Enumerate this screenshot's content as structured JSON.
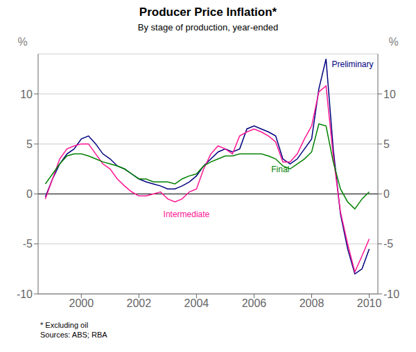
{
  "chart_data": {
    "type": "line",
    "title": "Producer Price Inflation*",
    "subtitle": "By stage of production, year-ended",
    "footnote": "*  Excluding oil",
    "sources": "Sources: ABS; RBA",
    "ylabel": "%",
    "y2label": "%",
    "ylim": [
      -10,
      14
    ],
    "yticks": [
      -10,
      -5,
      0,
      5,
      10
    ],
    "y2lim": [
      -10,
      14
    ],
    "y2ticks": [
      -10,
      -5,
      0,
      5,
      10
    ],
    "xlim": [
      1998.5,
      2010.3
    ],
    "xticks": [
      2000,
      2002,
      2004,
      2006,
      2008,
      2010
    ],
    "grid": true,
    "hlines": [
      0
    ],
    "x": [
      1998.75,
      1999.0,
      1999.25,
      1999.5,
      1999.75,
      2000.0,
      2000.25,
      2000.5,
      2000.75,
      2001.0,
      2001.25,
      2001.5,
      2001.75,
      2002.0,
      2002.25,
      2002.5,
      2002.75,
      2003.0,
      2003.25,
      2003.5,
      2003.75,
      2004.0,
      2004.25,
      2004.5,
      2004.75,
      2005.0,
      2005.25,
      2005.5,
      2005.75,
      2006.0,
      2006.25,
      2006.5,
      2006.75,
      2007.0,
      2007.25,
      2007.5,
      2007.75,
      2008.0,
      2008.25,
      2008.5,
      2008.75,
      2009.0,
      2009.25,
      2009.5,
      2009.75,
      2010.0
    ],
    "series": [
      {
        "name": "Preliminary",
        "color": "#000080",
        "values": [
          -0.3,
          1.5,
          3.0,
          4.0,
          4.5,
          5.5,
          5.8,
          5.0,
          4.0,
          3.5,
          2.8,
          2.5,
          2.0,
          1.5,
          1.2,
          1.0,
          0.8,
          0.5,
          0.5,
          0.8,
          1.2,
          1.8,
          2.8,
          3.5,
          4.2,
          4.5,
          4.2,
          4.5,
          6.5,
          6.8,
          6.5,
          6.2,
          5.8,
          3.5,
          3.0,
          3.5,
          4.5,
          5.5,
          10.5,
          13.5,
          4.5,
          -2.0,
          -5.5,
          -8.0,
          -7.5,
          -5.5
        ]
      },
      {
        "name": "Intermediate",
        "color": "#ff1493",
        "values": [
          -0.5,
          1.5,
          3.5,
          4.5,
          4.8,
          5.0,
          5.0,
          4.0,
          3.0,
          2.5,
          1.5,
          0.8,
          0.2,
          -0.2,
          -0.2,
          0.0,
          0.2,
          -0.5,
          -0.8,
          -0.5,
          0.2,
          0.5,
          2.5,
          4.0,
          4.8,
          4.5,
          4.0,
          5.8,
          6.2,
          6.5,
          6.2,
          5.8,
          5.2,
          3.2,
          3.2,
          4.0,
          5.5,
          6.8,
          10.2,
          10.8,
          3.8,
          -1.8,
          -5.0,
          -7.8,
          -6.2,
          -4.5
        ]
      },
      {
        "name": "Final",
        "color": "#008000",
        "values": [
          1.0,
          2.0,
          3.0,
          3.8,
          4.0,
          4.0,
          3.8,
          3.5,
          3.2,
          3.0,
          2.8,
          2.5,
          2.0,
          1.5,
          1.5,
          1.2,
          1.2,
          1.2,
          1.0,
          1.5,
          1.8,
          2.0,
          2.8,
          3.2,
          3.5,
          3.8,
          3.8,
          4.0,
          4.0,
          4.0,
          4.0,
          3.8,
          3.5,
          2.8,
          2.5,
          3.0,
          3.5,
          4.2,
          7.0,
          6.8,
          3.2,
          0.5,
          -0.8,
          -1.5,
          -0.5,
          0.2
        ]
      }
    ],
    "annotations": [
      {
        "text": "Preliminary",
        "x": 2008.65,
        "y": 13.0,
        "color": "#000080"
      },
      {
        "text": "Final",
        "x": 2006.55,
        "y": 2.5,
        "color": "#008000"
      },
      {
        "text": "Intermediate",
        "x": 2002.8,
        "y": -2.0,
        "color": "#ff1493"
      }
    ]
  }
}
